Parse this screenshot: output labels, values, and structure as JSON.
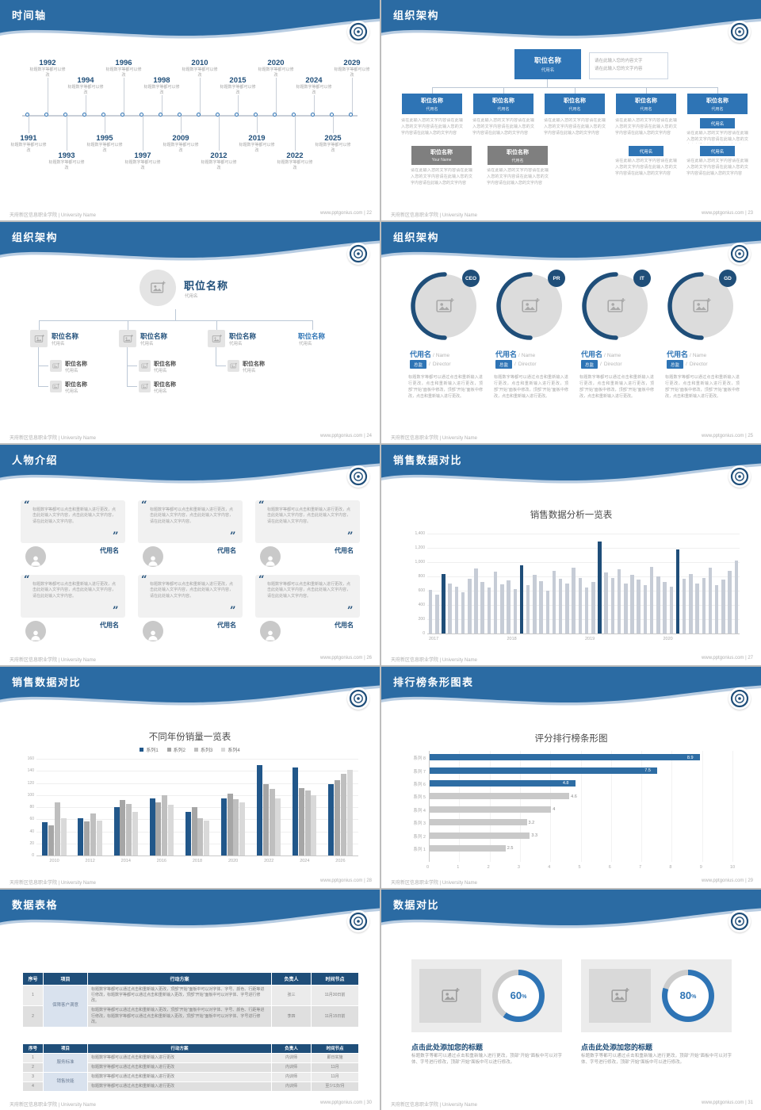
{
  "footer": {
    "left": "天府新区信息职业学院 | University Name",
    "site": "www.pptgonius.com",
    "sep": " | "
  },
  "slides": {
    "timeline": {
      "title": "时间轴",
      "page": "22",
      "caption": "标题数字等都可以修改",
      "items": [
        {
          "year": "1991",
          "dir": "down",
          "far": false
        },
        {
          "year": "1992",
          "dir": "up",
          "far": true
        },
        {
          "year": "1993",
          "dir": "down",
          "far": true
        },
        {
          "year": "1994",
          "dir": "up",
          "far": false
        },
        {
          "year": "1995",
          "dir": "down",
          "far": false
        },
        {
          "year": "1996",
          "dir": "up",
          "far": true
        },
        {
          "year": "1997",
          "dir": "down",
          "far": true
        },
        {
          "year": "1998",
          "dir": "up",
          "far": false
        },
        {
          "year": "2009",
          "dir": "down",
          "far": false
        },
        {
          "year": "2010",
          "dir": "up",
          "far": true
        },
        {
          "year": "2012",
          "dir": "down",
          "far": true
        },
        {
          "year": "2015",
          "dir": "up",
          "far": false
        },
        {
          "year": "2019",
          "dir": "down",
          "far": false
        },
        {
          "year": "2020",
          "dir": "up",
          "far": true
        },
        {
          "year": "2022",
          "dir": "down",
          "far": true
        },
        {
          "year": "2024",
          "dir": "up",
          "far": false
        },
        {
          "year": "2025",
          "dir": "down",
          "far": false
        },
        {
          "year": "2029",
          "dir": "up",
          "far": true
        }
      ]
    },
    "org_boxes": {
      "title": "组织架构",
      "page": "23",
      "root_name": "职位名称",
      "root_sub": "代用名",
      "note_line1": "请在此输入您的内容文字",
      "note_line2": "请在此输入您的文字内容",
      "child_name": "职位名称",
      "child_sub": "代用名",
      "child_note": "请在此输入您的文字内容请在此输入您的文字内容请在此输入您的文字内容请在此输入您的文字内容",
      "mini_label": "代用名",
      "gray_boxes": [
        {
          "name": "职位名称",
          "sub": "Your Name"
        },
        {
          "name": "职位名称",
          "sub": "代用名"
        }
      ]
    },
    "org_tree": {
      "title": "组织架构",
      "page": "24",
      "root_name": "职位名称",
      "root_sub": "代用名",
      "branch_name": "职位名称",
      "branch_sub": "代用名",
      "branch_sub_counts": [
        2,
        2,
        1,
        0
      ]
    },
    "org_circles": {
      "title": "组织架构",
      "page": "25",
      "badges": [
        "CEO",
        "PR",
        "IT",
        "GD"
      ],
      "name": "代用名",
      "name_en": "Name",
      "role": "总监",
      "role_en": "Director",
      "sep": "/",
      "desc": "标题数字等都可以通过点击和重新输入进行更改，点击和重新输入进行更改，顶部“开始”面板中修改，顶部“开始”面板中修改，点击和重新输入进行更改。"
    },
    "people": {
      "title": "人物介绍",
      "page": "26",
      "quote_open": "“",
      "quote_close": "”",
      "quote": "标题数字等都可以点击和重新输入进行更改，点击此处输入文字内容，点击此处输入文字内容，请在此处输入文字内容。",
      "name": "代用名"
    },
    "sales_chart": {
      "title": "销售数据对比",
      "page": "27",
      "chart_title": "销售数据分析一览表"
    },
    "year_chart": {
      "title": "销售数据对比",
      "page": "28",
      "chart_title": "不同年份销量一览表"
    },
    "rank_chart": {
      "title": "排行榜条形图表",
      "page": "29",
      "chart_title": "评分排行榜条形图"
    },
    "tables": {
      "title": "数据表格",
      "page": "30",
      "table1": {
        "headers": [
          "序号",
          "项目",
          "行动方案",
          "负责人",
          "时间节点"
        ],
        "rows": [
          {
            "no": "1",
            "project": "保障客户满意",
            "plan": "标题数字等都可以通过点击和重新输入更改，顶部“开始”面板中可以对字体、字号、颜色、行距等进行修改，标题数字等都可以通过点击和重新输入更改，顶部“开始”面板中可以对字体、字号进行修改。",
            "owner": "张三",
            "time": "11月30日前"
          },
          {
            "no": "2",
            "plan": "标题数字等都可以通过点击和重新输入更改，顶部“开始”面板中可以对字体、字号、颜色、行距等进行修改，标题数字等都可以通过点击和重新输入更改，顶部“开始”面板中可以对字体、字号进行修改。",
            "owner": "李四",
            "time": "11月15日前"
          }
        ]
      },
      "table2": {
        "headers": [
          "序号",
          "项目",
          "行动方案",
          "负责人",
          "时间节点"
        ],
        "rows": [
          {
            "no": "1",
            "project": "服务标准",
            "plan": "标题数字等都可以通过点击和重新输入进行更改",
            "owner": "内训师",
            "time": "即日实施"
          },
          {
            "no": "2",
            "plan": "标题数字等都可以通过点击和重新输入进行更改",
            "owner": "内训师",
            "time": "11月"
          },
          {
            "no": "3",
            "project": "销售技能",
            "plan": "标题数字等都可以通过点击和重新输入进行更改",
            "owner": "内训师",
            "time": "11月"
          },
          {
            "no": "4",
            "plan": "标题数字等都可以通过点击和重新输入进行更改",
            "owner": "内训师",
            "time": "至少1次/月"
          }
        ]
      }
    },
    "compare": {
      "title": "数据对比",
      "page": "31",
      "unit": "%",
      "panels": [
        {
          "percent": 60,
          "heading": "点击此处添加您的标题",
          "desc": "标题数字等都可以通过点击和重新输入进行更改，顶部“开始”面板中可以对字体、字号进行修改，顶部“开始”面板中可以进行修改。"
        },
        {
          "percent": 80,
          "heading": "点击此处添加您的标题",
          "desc": "标题数字等都可以通过点击和重新输入进行更改，顶部“开始”面板中可以对字体、字号进行修改，顶部“开始”面板中可以进行修改。"
        }
      ]
    }
  },
  "chart_data": [
    {
      "type": "bar",
      "title": "销售数据分析一览表",
      "x_groups": [
        "2017",
        "2018",
        "2019",
        "2020"
      ],
      "yticks": [
        "0",
        "200",
        "400",
        "600",
        "800",
        "1,000",
        "1,200",
        "1,400"
      ],
      "ylim": [
        0,
        1400
      ],
      "values": [
        610,
        540,
        830,
        700,
        655,
        580,
        760,
        905,
        720,
        640,
        860,
        690,
        745,
        615,
        950,
        680,
        820,
        735,
        600,
        875,
        760,
        700,
        915,
        775,
        640,
        715,
        1285,
        855,
        775,
        895,
        700,
        815,
        755,
        675,
        935,
        795,
        715,
        655,
        1175,
        760,
        835,
        700,
        775,
        915,
        680,
        755,
        875,
        1015
      ],
      "highlight_indices": [
        2,
        14,
        26,
        38
      ],
      "bar_color": "#c6ccd6",
      "highlight_color": "#1f4e79",
      "grid": true,
      "legend_position": "none"
    },
    {
      "type": "bar",
      "title": "不同年份销量一览表",
      "categories": [
        "2010",
        "2012",
        "2014",
        "2016",
        "2018",
        "2020",
        "2022",
        "2024",
        "2026"
      ],
      "yticks": [
        "0",
        "20",
        "40",
        "60",
        "80",
        "100",
        "120",
        "140",
        "160"
      ],
      "ylim": [
        0,
        160
      ],
      "series": [
        {
          "name": "系列1",
          "values": [
            55,
            62,
            80,
            95,
            72,
            95,
            150,
            146,
            118
          ]
        },
        {
          "name": "系列2",
          "values": [
            50,
            56,
            92,
            88,
            80,
            102,
            118,
            112,
            125
          ]
        },
        {
          "name": "系列3",
          "values": [
            88,
            70,
            86,
            100,
            62,
            94,
            110,
            108,
            135
          ]
        },
        {
          "name": "系列4",
          "values": [
            62,
            58,
            72,
            84,
            58,
            88,
            95,
            100,
            142
          ]
        }
      ],
      "colors": [
        "#21578a",
        "#a6a6a6",
        "#bfbfbf",
        "#d9d9d9"
      ],
      "grid": true,
      "legend_position": "top"
    },
    {
      "type": "bar",
      "orientation": "horizontal",
      "title": "评分排行榜条形图",
      "categories": [
        "系列 8",
        "系列 7",
        "系列 6",
        "系列 5",
        "系列 4",
        "系列 3",
        "系列 2",
        "系列 1"
      ],
      "values": [
        8.9,
        7.5,
        4.8,
        4.6,
        4,
        3.2,
        3.3,
        2.5
      ],
      "xticks": [
        "0",
        "1",
        "2",
        "3",
        "4",
        "5",
        "6",
        "7",
        "8",
        "9",
        "10"
      ],
      "xlim": [
        0,
        10
      ],
      "highlight_count": 3,
      "highlight_color": "#2e6da4",
      "bar_color": "#c9c9c9",
      "grid": true
    }
  ]
}
